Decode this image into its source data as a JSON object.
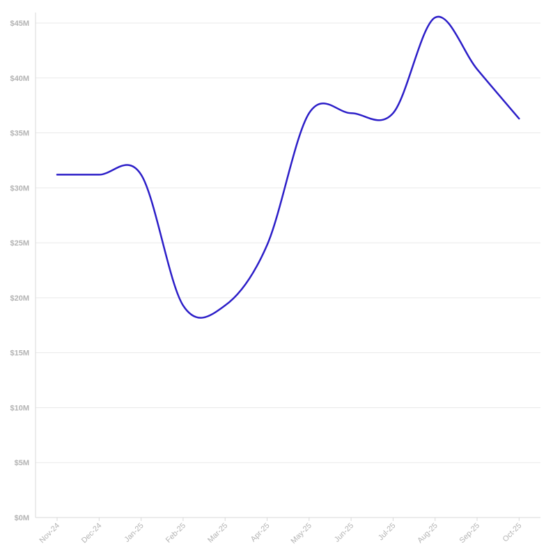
{
  "colors": {
    "series": "#2c1ec8",
    "grid": "#e9e9e9",
    "tick": "#b3b3b3"
  },
  "chart_data": {
    "type": "line",
    "title": "",
    "xlabel": "",
    "ylabel": "",
    "categories": [
      "Nov-24",
      "Dec-24",
      "Jan-25",
      "Feb-25",
      "Mar-25",
      "Apr-25",
      "May-25",
      "Jun-25",
      "Jul-25",
      "Aug-25",
      "Sep-25",
      "Oct-25"
    ],
    "series": [
      {
        "values": [
          31.2,
          31.2,
          31.2,
          19.3,
          19.3,
          24.8,
          36.8,
          36.8,
          36.8,
          45.5,
          40.8,
          36.3
        ]
      }
    ],
    "ylim": [
      0,
      46
    ],
    "y_ticks": [
      0,
      5,
      10,
      15,
      20,
      25,
      30,
      35,
      40,
      45
    ],
    "y_tick_labels": [
      "$0M",
      "$5M",
      "$10M",
      "$15M",
      "$20M",
      "$25M",
      "$30M",
      "$35M",
      "$40M",
      "$45M"
    ],
    "grid": true,
    "legend": "none"
  }
}
